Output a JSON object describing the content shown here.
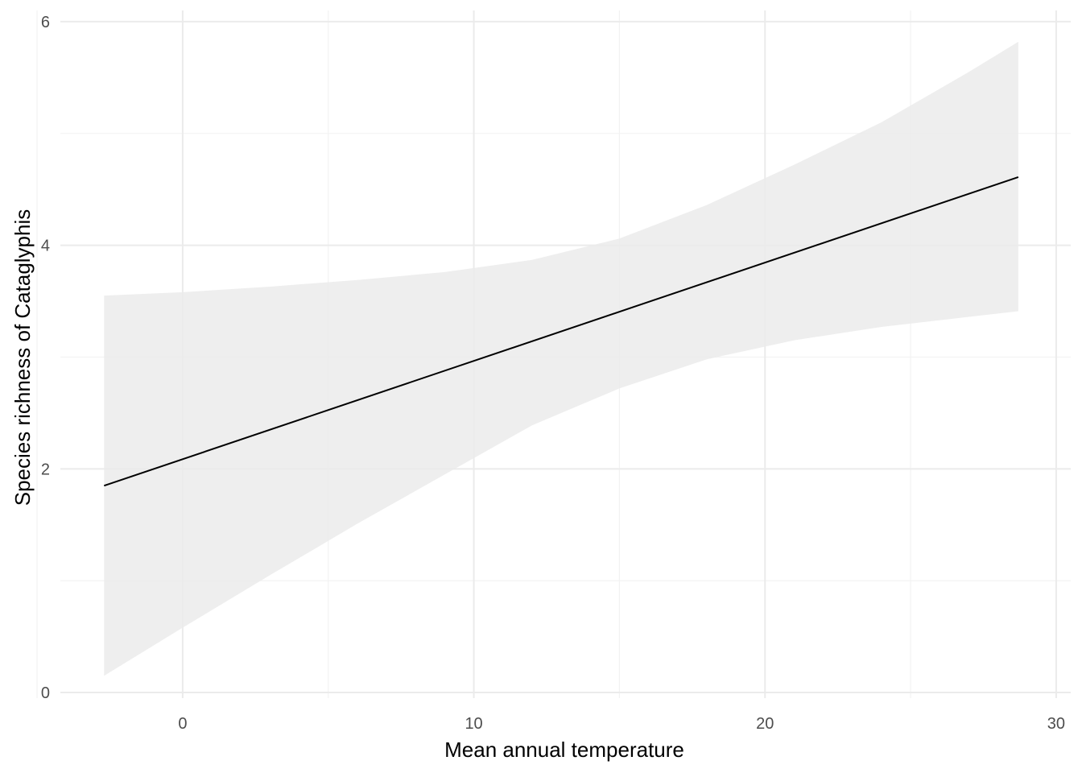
{
  "chart_data": {
    "type": "line",
    "title": "",
    "xlabel": "Mean annual temperature",
    "ylabel": "Species richness of Cataglyphis",
    "xlim": [
      -4.2,
      30.5
    ],
    "ylim": [
      -0.05,
      6.1
    ],
    "x_ticks": [
      0,
      10,
      20,
      30
    ],
    "x_tick_labels": [
      "0",
      "10",
      "20",
      "30"
    ],
    "y_ticks": [
      0,
      2,
      4,
      6
    ],
    "y_tick_labels": [
      "0",
      "2",
      "4",
      "6"
    ],
    "x_minor_ticks": [
      -5,
      5,
      15,
      25
    ],
    "y_minor_ticks": [
      1,
      3,
      5
    ],
    "grid": true,
    "legend": "none",
    "series": [
      {
        "type": "line",
        "color": "#000000",
        "x": [
          -2.7,
          28.7
        ],
        "y": [
          1.85,
          4.61
        ]
      }
    ],
    "ribbon": {
      "color": "#ebebeb",
      "x": [
        -2.7,
        0.0,
        3.0,
        6.0,
        9.0,
        12.0,
        15.0,
        18.0,
        21.0,
        24.0,
        27.0,
        28.7
      ],
      "lower": [
        0.15,
        0.58,
        1.05,
        1.51,
        1.95,
        2.39,
        2.72,
        2.98,
        3.15,
        3.27,
        3.36,
        3.41
      ],
      "upper": [
        3.55,
        3.58,
        3.63,
        3.69,
        3.76,
        3.87,
        4.06,
        4.36,
        4.72,
        5.1,
        5.55,
        5.82
      ]
    }
  }
}
